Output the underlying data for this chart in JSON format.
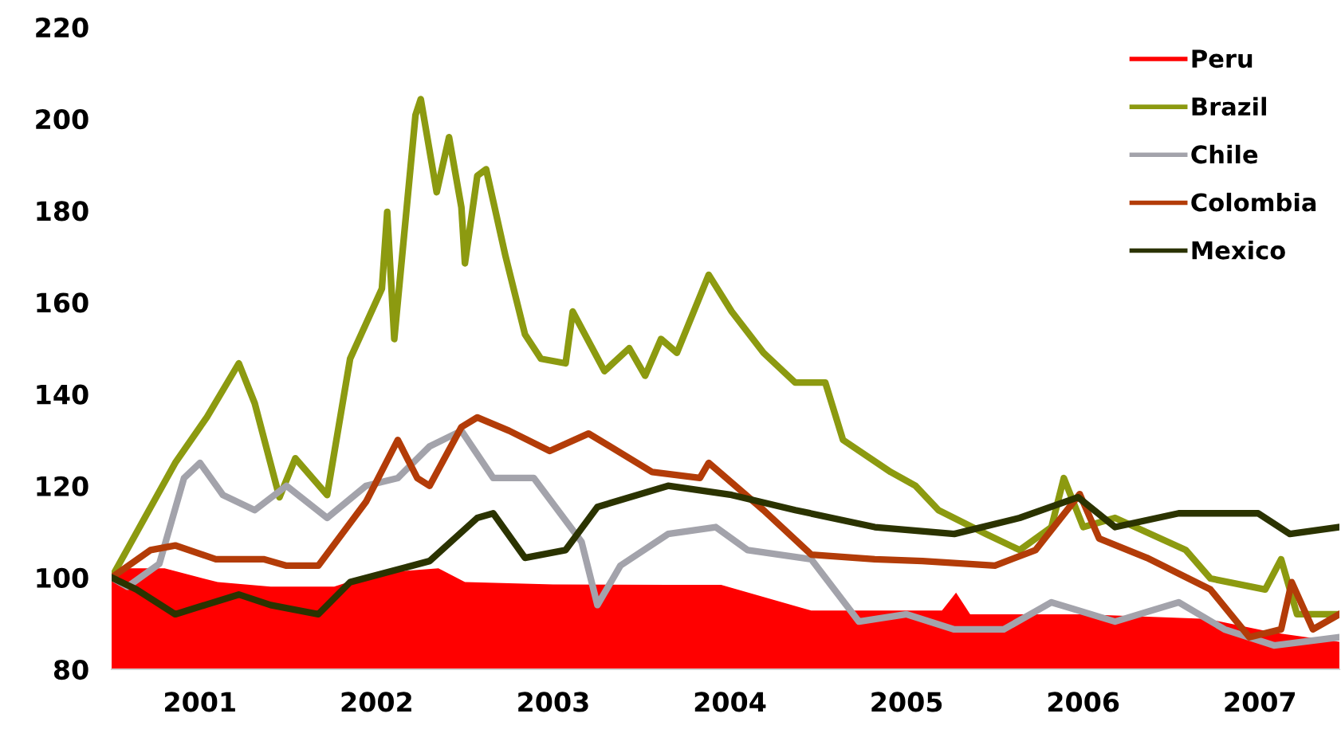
{
  "chart_data": {
    "type": "line",
    "xlim": [
      2001.0,
      2007.95
    ],
    "xticks": [
      {
        "value": 2001.5,
        "label": "2001"
      },
      {
        "value": 2002.5,
        "label": "2002"
      },
      {
        "value": 2003.5,
        "label": "2003"
      },
      {
        "value": 2004.5,
        "label": "2004"
      },
      {
        "value": 2005.5,
        "label": "2005"
      },
      {
        "value": 2006.5,
        "label": "2006"
      },
      {
        "value": 2007.5,
        "label": "2007"
      }
    ],
    "ylim": [
      80,
      220
    ],
    "yticks": [
      80,
      100,
      120,
      140,
      160,
      180,
      200,
      220
    ],
    "grid": false,
    "legend": "top right",
    "marker": "none",
    "line_style": "solid",
    "series": [
      {
        "name": "Peru",
        "type": "area",
        "color": "#ff0000",
        "x": [
          2001.0,
          2001.1,
          2001.3,
          2001.6,
          2001.9,
          2002.26,
          2002.5,
          2002.85,
          2003.0,
          2003.5,
          2004.15,
          2004.45,
          2004.96,
          2005.5,
          2005.7,
          2005.78,
          2005.86,
          2006.5,
          2007.2,
          2007.58,
          2007.95
        ],
        "values": [
          100,
          102,
          102,
          99,
          98,
          98,
          101,
          102,
          99,
          98.5,
          98.4,
          98.4,
          92.8,
          92.8,
          92.8,
          96.7,
          92,
          92,
          91,
          88,
          86
        ]
      },
      {
        "name": "Brazil",
        "color": "#8c9a10",
        "x": [
          2001.0,
          2001.36,
          2001.54,
          2001.72,
          2001.81,
          2001.95,
          2002.04,
          2002.22,
          2002.35,
          2002.53,
          2002.56,
          2002.6,
          2002.72,
          2002.75,
          2002.84,
          2002.91,
          2002.98,
          2003.0,
          2003.07,
          2003.12,
          2003.23,
          2003.34,
          2003.43,
          2003.57,
          2003.61,
          2003.79,
          2003.93,
          2004.02,
          2004.11,
          2004.2,
          2004.38,
          2004.51,
          2004.69,
          2004.87,
          2005.04,
          2005.14,
          2005.41,
          2005.55,
          2005.68,
          2005.95,
          2006.14,
          2006.32,
          2006.39,
          2006.5,
          2006.68,
          2007.08,
          2007.22,
          2007.53,
          2007.62,
          2007.71,
          2007.95
        ],
        "values": [
          100,
          125,
          135,
          146.7,
          138,
          117.5,
          126,
          118,
          147.7,
          163,
          179.7,
          152,
          200.8,
          204.3,
          184,
          196,
          180.7,
          168.5,
          187.6,
          189,
          170,
          153,
          147.7,
          146.7,
          158,
          145,
          150,
          144,
          152,
          149,
          166,
          158,
          149,
          142.5,
          142.5,
          130,
          123,
          120,
          114.7,
          109.5,
          106,
          111,
          121.7,
          111,
          113,
          106,
          99.8,
          97.4,
          104,
          92,
          92
        ]
      },
      {
        "name": "Chile",
        "color": "#a3a3ab",
        "x": [
          2001.0,
          2001.09,
          2001.27,
          2001.41,
          2001.5,
          2001.63,
          2001.81,
          2001.99,
          2002.22,
          2002.44,
          2002.62,
          2002.8,
          2002.98,
          2003.16,
          2003.39,
          2003.66,
          2003.75,
          2003.88,
          2004.15,
          2004.42,
          2004.6,
          2004.96,
          2005.23,
          2005.5,
          2005.77,
          2006.05,
          2006.32,
          2006.68,
          2007.04,
          2007.3,
          2007.58,
          2007.95
        ],
        "values": [
          100,
          98,
          103,
          121.7,
          125,
          118,
          114.7,
          120,
          113,
          120,
          121.7,
          128.6,
          132,
          121.7,
          121.7,
          107.8,
          94,
          102.6,
          109.5,
          111,
          106,
          104,
          90.4,
          92,
          88.7,
          88.7,
          94.6,
          90.4,
          94.6,
          88.7,
          85.2,
          87
        ]
      },
      {
        "name": "Colombia",
        "color": "#b33c08",
        "x": [
          2001.0,
          2001.22,
          2001.36,
          2001.59,
          2001.86,
          2001.99,
          2002.17,
          2002.44,
          2002.62,
          2002.73,
          2002.8,
          2002.98,
          2003.07,
          2003.25,
          2003.48,
          2003.7,
          2004.06,
          2004.33,
          2004.38,
          2004.69,
          2004.96,
          2005.32,
          2005.59,
          2006.0,
          2006.23,
          2006.48,
          2006.59,
          2006.86,
          2007.22,
          2007.44,
          2007.62,
          2007.68,
          2007.8,
          2007.95
        ],
        "values": [
          100,
          106,
          107,
          104,
          104,
          102.6,
          102.6,
          116.5,
          130,
          121.7,
          120,
          132.8,
          134.9,
          132,
          127.6,
          131.4,
          123,
          121.7,
          125,
          114.7,
          105,
          104,
          103.6,
          102.6,
          106,
          118.2,
          108.5,
          104.3,
          97.4,
          87,
          88.7,
          99,
          88.7,
          92
        ]
      },
      {
        "name": "Mexico",
        "color": "#2b3300",
        "x": [
          2001.0,
          2001.14,
          2001.36,
          2001.72,
          2001.9,
          2002.17,
          2002.35,
          2002.8,
          2003.07,
          2003.16,
          2003.34,
          2003.57,
          2003.75,
          2004.15,
          2004.51,
          2004.87,
          2005.32,
          2005.77,
          2006.14,
          2006.47,
          2006.68,
          2007.04,
          2007.49,
          2007.67,
          2007.95
        ],
        "values": [
          100,
          97.4,
          92,
          96.3,
          94,
          92,
          99,
          103.6,
          113,
          114,
          104.3,
          106,
          115.4,
          120,
          118,
          114.7,
          111,
          109.5,
          113,
          117.5,
          111,
          114,
          114,
          109.5,
          111
        ]
      }
    ]
  }
}
